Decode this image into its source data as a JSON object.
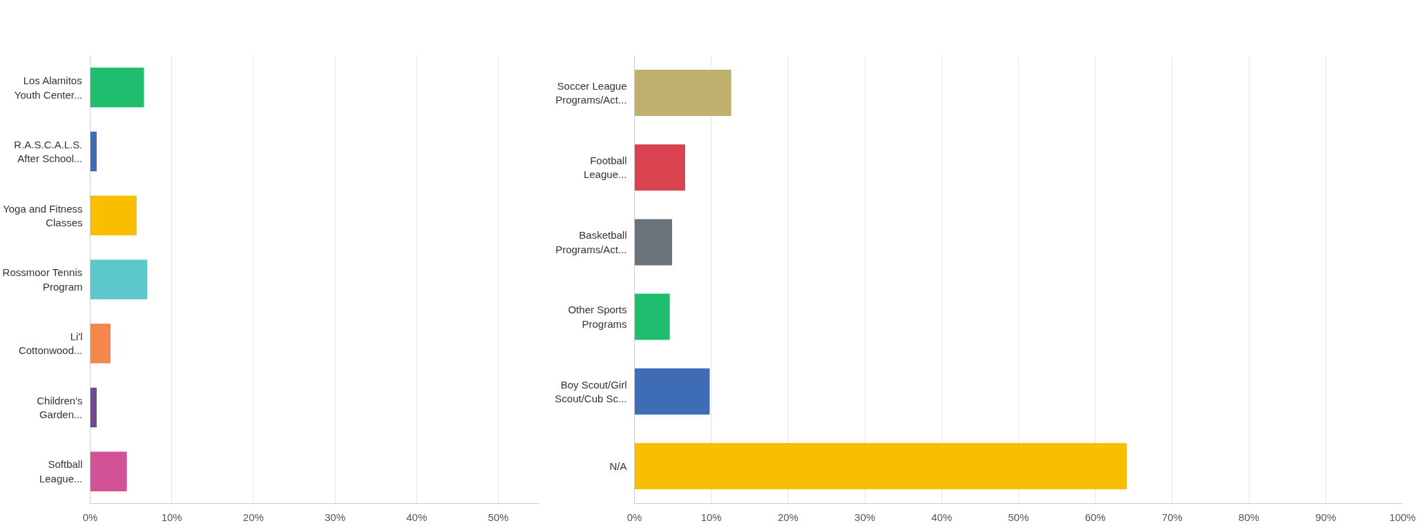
{
  "chart_data": [
    {
      "type": "bar",
      "orientation": "horizontal",
      "categories": [
        "Los Alamitos Youth Center...",
        "R.A.S.C.A.L.S. After School...",
        "Yoga and Fitness Classes",
        "Rossmoor Tennis Program",
        "Li'l Cottonwood...",
        "Children's Garden...",
        "Softball League..."
      ],
      "values": [
        6.6,
        0.8,
        5.7,
        7.0,
        2.5,
        0.8,
        4.5
      ],
      "colors": [
        "#1fbe6e",
        "#3f6db5",
        "#f9be00",
        "#5cc8cc",
        "#f6874c",
        "#6e4a8f",
        "#d25296"
      ],
      "xlim": [
        0,
        55
      ],
      "xticks": [
        {
          "value": 0,
          "label": "0%"
        },
        {
          "value": 10,
          "label": "10%"
        },
        {
          "value": 20,
          "label": "20%"
        },
        {
          "value": 30,
          "label": "30%"
        },
        {
          "value": 40,
          "label": "40%"
        },
        {
          "value": 50,
          "label": "50%"
        }
      ],
      "grid": "x"
    },
    {
      "type": "bar",
      "orientation": "horizontal",
      "categories": [
        "Soccer League Programs/Act...",
        "Football League...",
        "Basketball Programs/Act...",
        "Other Sports Programs",
        "Boy Scout/Girl Scout/Cub Sc...",
        "N/A"
      ],
      "values": [
        12.6,
        6.6,
        4.9,
        4.6,
        9.8,
        64.1
      ],
      "colors": [
        "#bfb06e",
        "#d9424f",
        "#6b7378",
        "#1fbe6e",
        "#3f6db5",
        "#f9be00"
      ],
      "xlim": [
        0,
        100
      ],
      "xticks": [
        {
          "value": 0,
          "label": "0%"
        },
        {
          "value": 10,
          "label": "10%"
        },
        {
          "value": 20,
          "label": "20%"
        },
        {
          "value": 30,
          "label": "30%"
        },
        {
          "value": 40,
          "label": "40%"
        },
        {
          "value": 50,
          "label": "50%"
        },
        {
          "value": 60,
          "label": "60%"
        },
        {
          "value": 70,
          "label": "70%"
        },
        {
          "value": 80,
          "label": "80%"
        },
        {
          "value": 90,
          "label": "90%"
        },
        {
          "value": 100,
          "label": "100%"
        }
      ],
      "grid": "x"
    }
  ]
}
